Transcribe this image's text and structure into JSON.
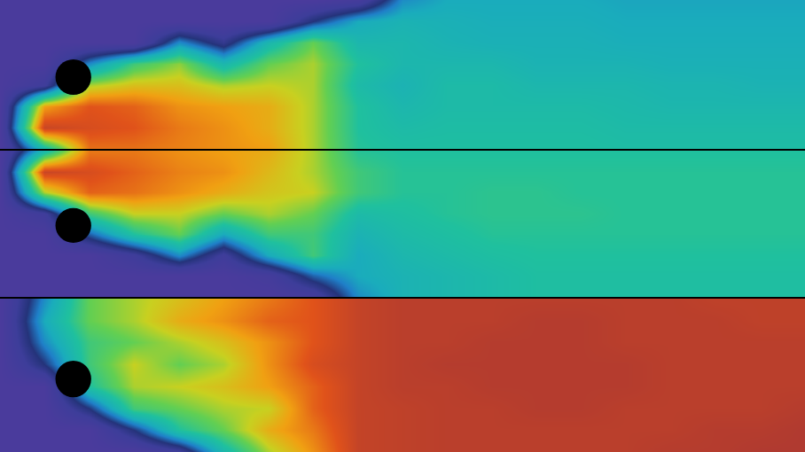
{
  "chart_data": [
    {
      "type": "heatmap",
      "tick_labels": false,
      "x": [
        0,
        0.5,
        1,
        1.5,
        2,
        2.5,
        3,
        3.5,
        4,
        4.5,
        5,
        5.5,
        6,
        6.5,
        7,
        7.5,
        8,
        8.5,
        9
      ],
      "y": [
        0,
        0.24,
        0.48,
        0.72,
        0.96,
        1.2,
        1.44,
        1.68
      ],
      "xlim": [
        0,
        9
      ],
      "ylim": [
        1.68,
        0
      ],
      "zlim": [
        0,
        1
      ],
      "z": [
        [
          0,
          0,
          0,
          0,
          0,
          0,
          0,
          0,
          0.05,
          0.3,
          0.35,
          0.35,
          0.35,
          0.35,
          0.34,
          0.34,
          0.34,
          0.34,
          0.34
        ],
        [
          0,
          0,
          0,
          0,
          0,
          0,
          0,
          0.2,
          0.35,
          0.38,
          0.37,
          0.36,
          0.36,
          0.36,
          0.35,
          0.35,
          0.35,
          0.35,
          0.35
        ],
        [
          0,
          0,
          0,
          0,
          0.3,
          0.15,
          0.4,
          0.55,
          0.4,
          0.4,
          0.38,
          0.37,
          0.37,
          0.37,
          0.36,
          0.36,
          0.36,
          0.36,
          0.36
        ],
        [
          0,
          0,
          0.3,
          0.5,
          0.58,
          0.4,
          0.55,
          0.6,
          0.45,
          0.4,
          0.4,
          0.4,
          0.38,
          0.38,
          0.38,
          0.37,
          0.37,
          0.37,
          0.37
        ],
        [
          0,
          0.1,
          0.6,
          0.65,
          0.65,
          0.6,
          0.62,
          0.6,
          0.42,
          0.38,
          0.42,
          0.42,
          0.4,
          0.4,
          0.4,
          0.39,
          0.39,
          0.38,
          0.38
        ],
        [
          0,
          0.7,
          0.8,
          0.78,
          0.72,
          0.7,
          0.68,
          0.6,
          0.45,
          0.4,
          0.42,
          0.42,
          0.42,
          0.42,
          0.41,
          0.4,
          0.4,
          0.4,
          0.4
        ],
        [
          0,
          0.85,
          0.82,
          0.8,
          0.75,
          0.72,
          0.68,
          0.6,
          0.45,
          0.42,
          0.43,
          0.43,
          0.43,
          0.43,
          0.42,
          0.42,
          0.42,
          0.42,
          0.42
        ],
        [
          0,
          0.4,
          0.76,
          0.76,
          0.74,
          0.72,
          0.7,
          0.6,
          0.46,
          0.44,
          0.44,
          0.44,
          0.44,
          0.44,
          0.43,
          0.43,
          0.43,
          0.43,
          0.43
        ]
      ],
      "obstacle": {
        "x": 0.82,
        "y": 0.87,
        "r": 0.2
      }
    },
    {
      "type": "heatmap",
      "tick_labels": false,
      "x": [
        0,
        0.5,
        1,
        1.5,
        2,
        2.5,
        3,
        3.5,
        4,
        4.5,
        5,
        5.5,
        6,
        6.5,
        7,
        7.5,
        8,
        8.5,
        9
      ],
      "y": [
        0,
        0.24,
        0.48,
        0.72,
        0.96,
        1.2,
        1.44,
        1.68
      ],
      "xlim": [
        0,
        9
      ],
      "ylim": [
        1.68,
        0
      ],
      "zlim": [
        0,
        1
      ],
      "z": [
        [
          0,
          0.4,
          0.75,
          0.75,
          0.72,
          0.7,
          0.68,
          0.6,
          0.46,
          0.45,
          0.45,
          0.45,
          0.45,
          0.45,
          0.45,
          0.45,
          0.45,
          0.45,
          0.45
        ],
        [
          0,
          0.85,
          0.82,
          0.78,
          0.74,
          0.72,
          0.66,
          0.6,
          0.5,
          0.46,
          0.46,
          0.46,
          0.46,
          0.46,
          0.46,
          0.46,
          0.46,
          0.46,
          0.46
        ],
        [
          0,
          0.6,
          0.78,
          0.76,
          0.72,
          0.68,
          0.64,
          0.62,
          0.5,
          0.46,
          0.46,
          0.47,
          0.47,
          0.46,
          0.46,
          0.46,
          0.46,
          0.46,
          0.46
        ],
        [
          0,
          0.1,
          0.5,
          0.62,
          0.62,
          0.55,
          0.6,
          0.55,
          0.42,
          0.44,
          0.46,
          0.47,
          0.47,
          0.47,
          0.46,
          0.46,
          0.46,
          0.46,
          0.46
        ],
        [
          0,
          0,
          0.25,
          0.45,
          0.55,
          0.35,
          0.5,
          0.5,
          0.38,
          0.42,
          0.44,
          0.46,
          0.46,
          0.46,
          0.46,
          0.46,
          0.46,
          0.46,
          0.46
        ],
        [
          0,
          0,
          0,
          0.1,
          0.3,
          0.1,
          0.35,
          0.5,
          0.35,
          0.4,
          0.42,
          0.44,
          0.45,
          0.45,
          0.45,
          0.45,
          0.45,
          0.45,
          0.45
        ],
        [
          0,
          0,
          0,
          0,
          0,
          0,
          0.05,
          0.25,
          0.35,
          0.38,
          0.4,
          0.42,
          0.44,
          0.44,
          0.44,
          0.44,
          0.44,
          0.44,
          0.44
        ],
        [
          0,
          0,
          0,
          0,
          0,
          0,
          0,
          0.05,
          0.3,
          0.38,
          0.4,
          0.42,
          0.44,
          0.44,
          0.44,
          0.44,
          0.44,
          0.44,
          0.44
        ]
      ],
      "obstacle": {
        "x": 0.82,
        "y": 0.86,
        "r": 0.2
      }
    },
    {
      "type": "heatmap",
      "tick_labels": false,
      "x": [
        0,
        0.5,
        1,
        1.5,
        2,
        2.5,
        3,
        3.5,
        4,
        4.5,
        5,
        5.5,
        6,
        6.5,
        7,
        7.5,
        8,
        8.5,
        9
      ],
      "y": [
        0,
        0.24,
        0.48,
        0.72,
        0.96,
        1.2,
        1.44,
        1.68
      ],
      "xlim": [
        0,
        9
      ],
      "ylim": [
        1.68,
        0
      ],
      "zlim": [
        0,
        1
      ],
      "z": [
        [
          0,
          0.3,
          0.55,
          0.6,
          0.65,
          0.7,
          0.75,
          0.8,
          0.86,
          0.88,
          0.88,
          0.88,
          0.88,
          0.88,
          0.88,
          0.88,
          0.87,
          0.87,
          0.87
        ],
        [
          0,
          0.35,
          0.55,
          0.6,
          0.68,
          0.72,
          0.78,
          0.8,
          0.86,
          0.88,
          0.88,
          0.88,
          0.89,
          0.89,
          0.88,
          0.88,
          0.88,
          0.87,
          0.87
        ],
        [
          0,
          0.3,
          0.5,
          0.55,
          0.6,
          0.65,
          0.72,
          0.8,
          0.86,
          0.88,
          0.88,
          0.89,
          0.89,
          0.89,
          0.88,
          0.88,
          0.88,
          0.88,
          0.88
        ],
        [
          0,
          0.2,
          0.5,
          0.62,
          0.55,
          0.6,
          0.72,
          0.82,
          0.86,
          0.88,
          0.89,
          0.89,
          0.89,
          0.89,
          0.89,
          0.88,
          0.88,
          0.88,
          0.88
        ],
        [
          0,
          0,
          0.45,
          0.6,
          0.62,
          0.65,
          0.7,
          0.78,
          0.86,
          0.88,
          0.88,
          0.89,
          0.89,
          0.89,
          0.89,
          0.88,
          0.88,
          0.88,
          0.88
        ],
        [
          0,
          0,
          0.2,
          0.5,
          0.55,
          0.6,
          0.62,
          0.78,
          0.86,
          0.87,
          0.88,
          0.88,
          0.89,
          0.89,
          0.88,
          0.88,
          0.88,
          0.88,
          0.89
        ],
        [
          0,
          0,
          0,
          0.2,
          0.45,
          0.55,
          0.68,
          0.75,
          0.86,
          0.87,
          0.88,
          0.88,
          0.88,
          0.88,
          0.88,
          0.88,
          0.89,
          0.89,
          0.9
        ],
        [
          0,
          0,
          0,
          0,
          0.1,
          0.4,
          0.6,
          0.72,
          0.86,
          0.87,
          0.88,
          0.88,
          0.88,
          0.88,
          0.88,
          0.89,
          0.89,
          0.9,
          0.9
        ]
      ],
      "obstacle": {
        "x": 0.82,
        "y": 0.88,
        "r": 0.2
      }
    }
  ]
}
